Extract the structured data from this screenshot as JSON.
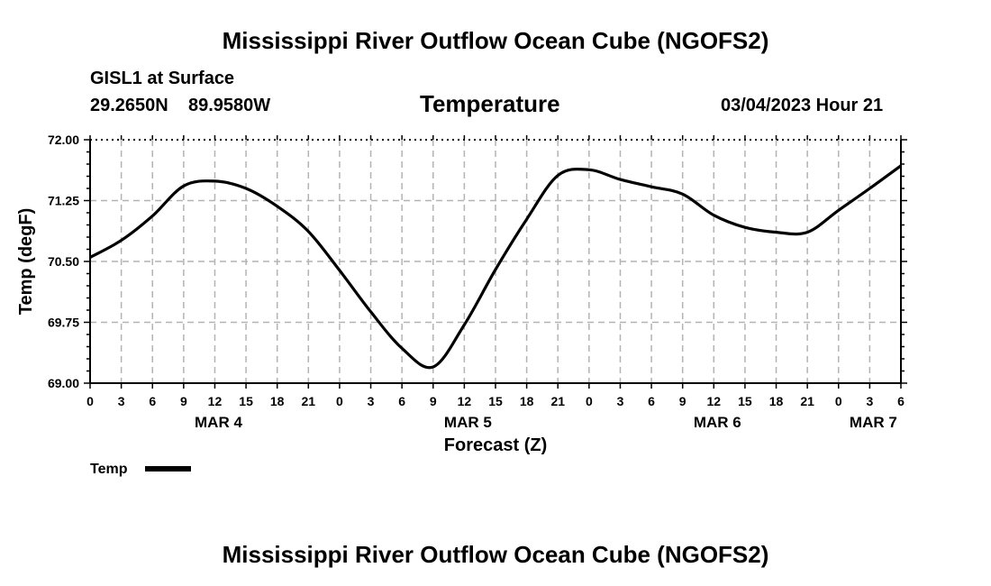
{
  "header": {
    "title": "Mississippi River Outflow Ocean Cube (NGOFS2)",
    "station": "GISL1 at Surface",
    "latitude": "29.2650N",
    "longitude": "89.9580W",
    "datetime": "03/04/2023 Hour 21"
  },
  "footer": {
    "title": "Mississippi River Outflow Ocean Cube (NGOFS2)"
  },
  "chart_data": {
    "type": "line",
    "title": "Temperature",
    "xlabel": "Forecast (Z)",
    "ylabel": "Temp (degF)",
    "ylim": [
      69.0,
      72.0
    ],
    "xlim_hours": [
      0,
      78
    ],
    "grid": true,
    "y_ticks": [
      "69.00",
      "69.75",
      "70.50",
      "71.25",
      "72.00"
    ],
    "y_tick_values": [
      69.0,
      69.75,
      70.5,
      71.25,
      72.0
    ],
    "x_tick_labels": [
      "0",
      "3",
      "6",
      "9",
      "12",
      "15",
      "18",
      "21",
      "0",
      "3",
      "6",
      "9",
      "12",
      "15",
      "18",
      "21",
      "0",
      "3",
      "6",
      "9",
      "12",
      "15",
      "18",
      "21",
      "0",
      "3",
      "6"
    ],
    "day_labels": [
      {
        "label": "MAR 4",
        "hour": 12
      },
      {
        "label": "MAR 5",
        "hour": 36
      },
      {
        "label": "MAR 6",
        "hour": 60
      },
      {
        "label": "MAR 7",
        "hour": 75
      }
    ],
    "series": [
      {
        "name": "Temp",
        "color": "#000000",
        "x": [
          0,
          3,
          6,
          9,
          12,
          15,
          18,
          21,
          24,
          27,
          30,
          33,
          36,
          39,
          42,
          45,
          48,
          51,
          54,
          57,
          60,
          63,
          66,
          69,
          72,
          75,
          78
        ],
        "values": [
          70.55,
          70.76,
          71.06,
          71.43,
          71.49,
          71.4,
          71.18,
          70.87,
          70.39,
          69.88,
          69.43,
          69.2,
          69.72,
          70.4,
          71.02,
          71.56,
          71.63,
          71.51,
          71.42,
          71.33,
          71.07,
          70.92,
          70.86,
          70.86,
          71.13,
          71.4,
          71.68
        ]
      }
    ]
  }
}
